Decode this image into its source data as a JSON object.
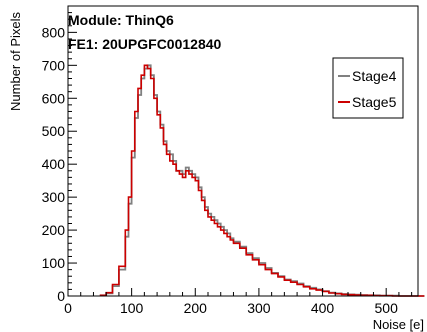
{
  "chart_data": {
    "type": "line",
    "title": "",
    "xlabel": "Noise [e]",
    "ylabel": "Number of Pixels",
    "xlim": [
      0,
      550
    ],
    "ylim": [
      0,
      880
    ],
    "x_ticks": [
      0,
      100,
      200,
      300,
      400,
      500
    ],
    "y_ticks": [
      0,
      100,
      200,
      300,
      400,
      500,
      600,
      700,
      800
    ],
    "annotations": [
      "Module: ThinQ6",
      "FE1: 20UPGFC0012840"
    ],
    "legend": {
      "placement": "top-right"
    },
    "grid": false,
    "series": [
      {
        "name": "Stage4",
        "color": "#808080",
        "x": [
          50,
          60,
          70,
          80,
          90,
          95,
          100,
          105,
          110,
          115,
          120,
          125,
          130,
          135,
          140,
          145,
          150,
          155,
          160,
          165,
          170,
          175,
          180,
          185,
          190,
          195,
          200,
          205,
          210,
          215,
          220,
          225,
          230,
          235,
          240,
          245,
          250,
          255,
          260,
          270,
          280,
          290,
          300,
          310,
          320,
          330,
          340,
          350,
          360,
          370,
          380,
          390,
          400,
          410,
          420,
          430,
          440,
          450,
          460,
          470,
          480,
          490,
          500,
          510,
          520,
          530,
          540,
          550
        ],
        "y": [
          2,
          8,
          30,
          80,
          180,
          280,
          420,
          540,
          610,
          660,
          690,
          700,
          670,
          610,
          560,
          520,
          470,
          440,
          430,
          410,
          380,
          380,
          370,
          390,
          380,
          370,
          360,
          330,
          300,
          270,
          250,
          240,
          230,
          220,
          210,
          200,
          190,
          175,
          165,
          150,
          130,
          115,
          100,
          85,
          70,
          60,
          50,
          45,
          38,
          30,
          25,
          20,
          15,
          10,
          8,
          6,
          5,
          4,
          3,
          2,
          2,
          1,
          1,
          1,
          0,
          0,
          0,
          0
        ]
      },
      {
        "name": "Stage5",
        "color": "#cc0000",
        "x": [
          50,
          60,
          70,
          80,
          90,
          95,
          100,
          105,
          110,
          115,
          120,
          125,
          130,
          135,
          140,
          145,
          150,
          155,
          160,
          165,
          170,
          175,
          180,
          185,
          190,
          195,
          200,
          205,
          210,
          215,
          220,
          225,
          230,
          235,
          240,
          245,
          250,
          255,
          260,
          270,
          280,
          290,
          300,
          310,
          320,
          330,
          340,
          350,
          360,
          370,
          380,
          390,
          400,
          410,
          420,
          430,
          440,
          450,
          460,
          470,
          480,
          490,
          500,
          510,
          520,
          530,
          540,
          550
        ],
        "y": [
          2,
          10,
          35,
          90,
          200,
          300,
          440,
          560,
          630,
          670,
          700,
          690,
          660,
          600,
          550,
          510,
          460,
          430,
          410,
          400,
          380,
          370,
          360,
          380,
          370,
          360,
          350,
          320,
          290,
          260,
          240,
          230,
          220,
          210,
          200,
          190,
          180,
          170,
          160,
          145,
          125,
          110,
          95,
          80,
          68,
          58,
          48,
          42,
          35,
          28,
          22,
          18,
          14,
          9,
          7,
          5,
          4,
          3,
          2,
          2,
          1,
          1,
          1,
          0,
          0,
          0,
          0,
          0
        ]
      }
    ]
  }
}
